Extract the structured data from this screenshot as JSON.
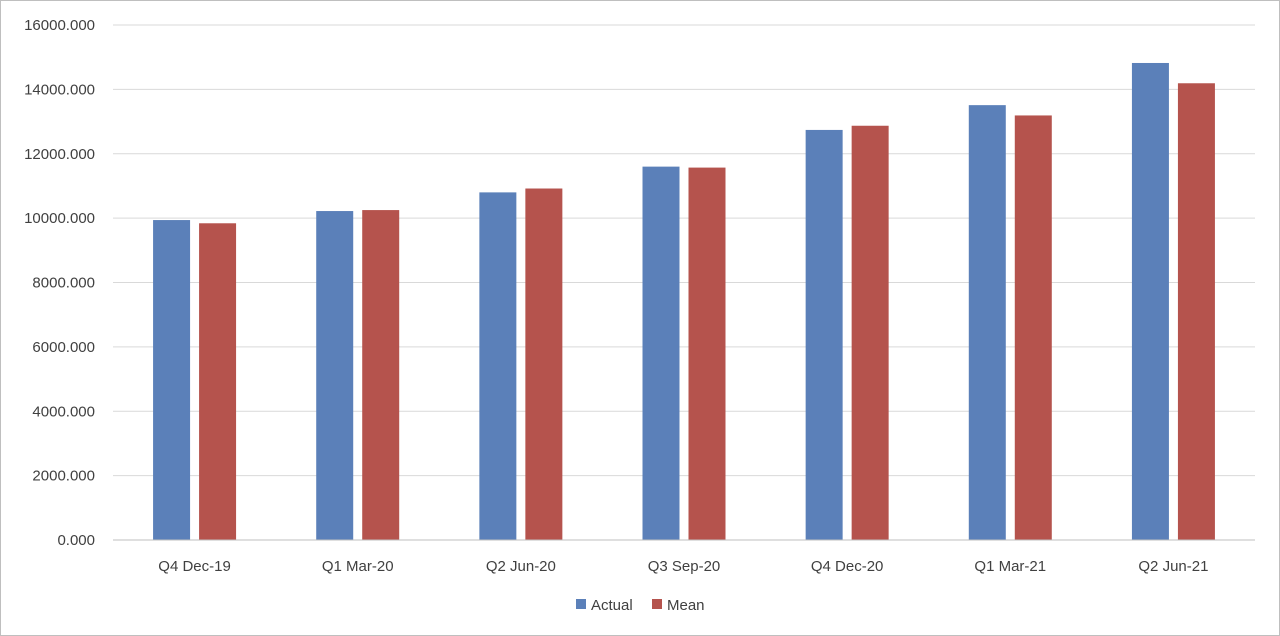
{
  "chart_data": {
    "type": "bar",
    "categories": [
      "Q4 Dec-19",
      "Q1 Mar-20",
      "Q2 Jun-20",
      "Q3 Sep-20",
      "Q4 Dec-20",
      "Q1 Mar-21",
      "Q2 Jun-21"
    ],
    "series": [
      {
        "name": "Actual",
        "color": "#5b80b9",
        "values": [
          9940,
          10220,
          10800,
          11600,
          12740,
          13510,
          14820
        ]
      },
      {
        "name": "Mean",
        "color": "#b5534d",
        "values": [
          9840,
          10250,
          10920,
          11570,
          12870,
          13190,
          14190
        ]
      }
    ],
    "ylim": [
      0,
      16000
    ],
    "y_ticks": [
      0,
      2000,
      4000,
      6000,
      8000,
      10000,
      12000,
      14000,
      16000
    ],
    "y_tick_labels": [
      "0.000",
      "2000.000",
      "4000.000",
      "6000.000",
      "8000.000",
      "10000.000",
      "12000.000",
      "14000.000",
      "16000.000"
    ],
    "title": "",
    "xlabel": "",
    "ylabel": "",
    "grid": true,
    "legend_position": "bottom-center",
    "gridline_color": "#d9d9d9",
    "axis_color": "#bfbfbf"
  }
}
